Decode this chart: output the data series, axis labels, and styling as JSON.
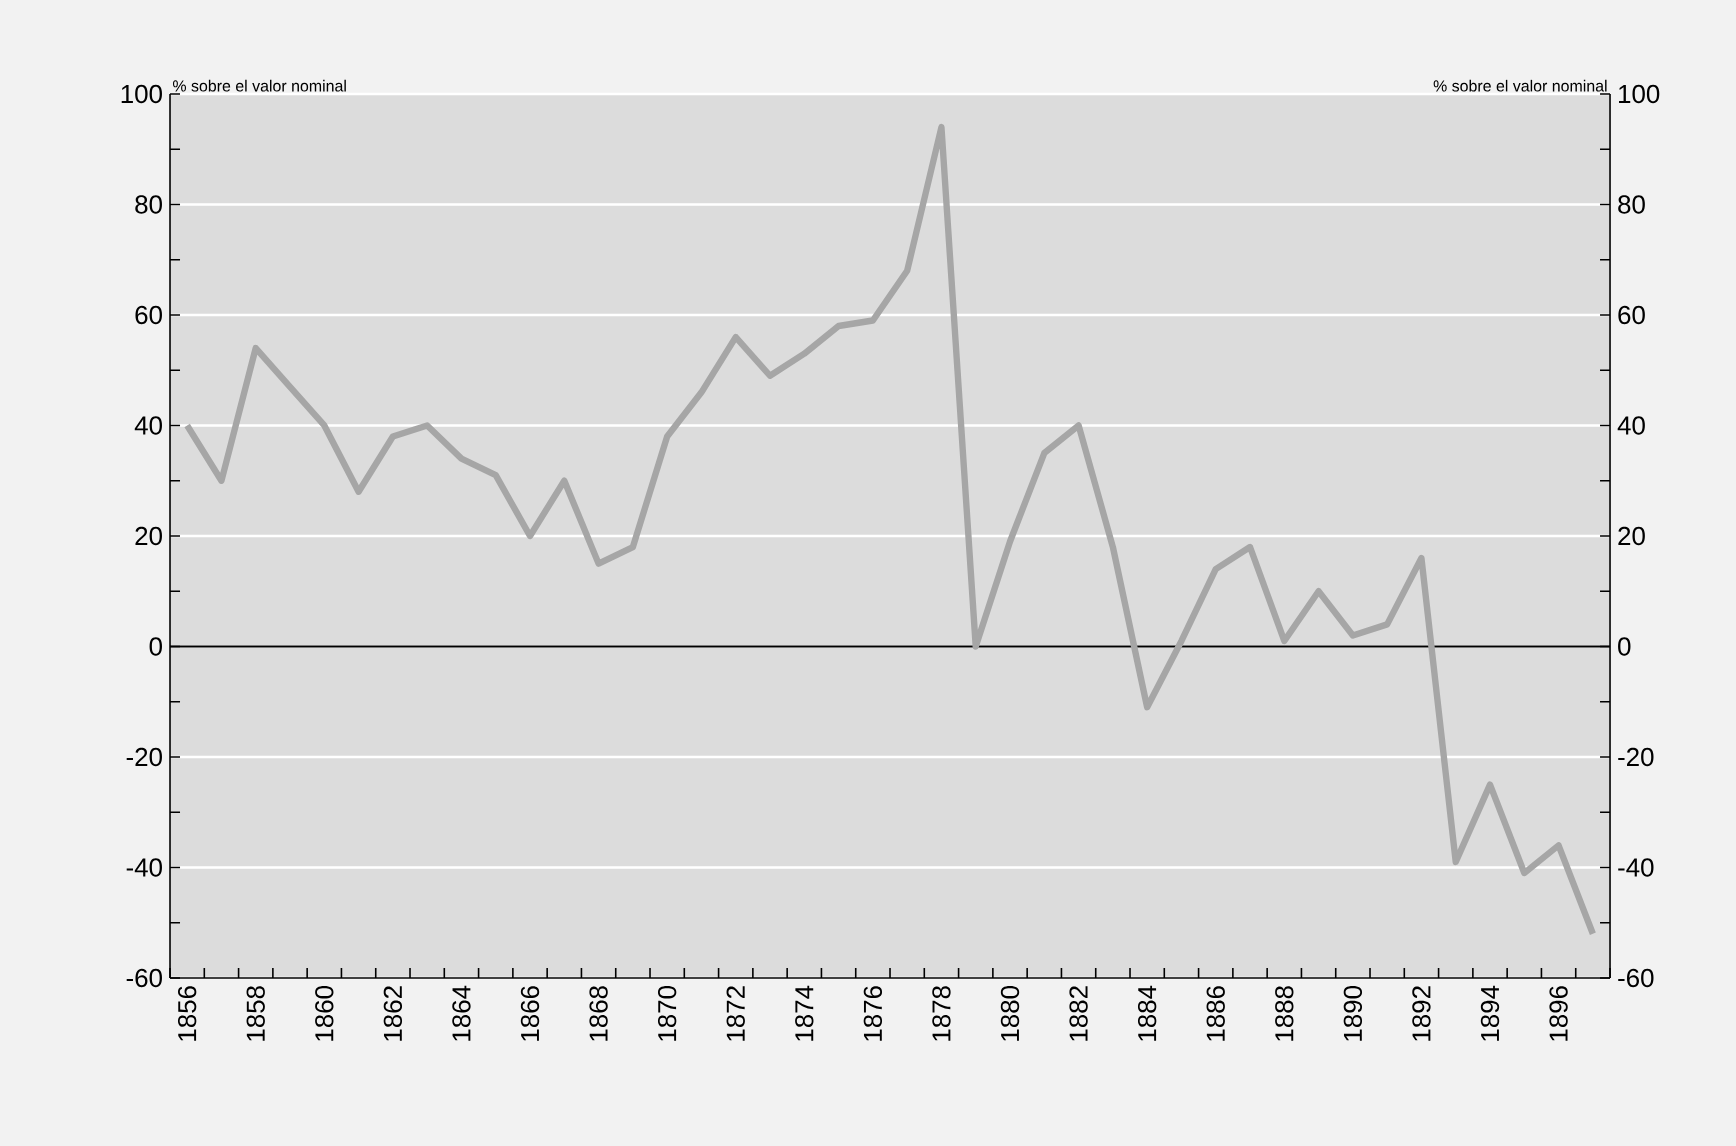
{
  "chart_data": {
    "type": "line",
    "ylabel": "% sobre el valor nominal",
    "y2label": "% sobre el valor nominal",
    "categories": [
      "1856",
      null,
      "1858",
      null,
      "1860",
      null,
      "1862",
      null,
      "1864",
      null,
      "1866",
      null,
      "1868",
      null,
      "1870",
      null,
      "1872",
      null,
      "1874",
      null,
      "1876",
      null,
      "1878",
      null,
      "1880",
      null,
      "1882",
      null,
      "1884",
      null,
      "1886",
      null,
      "1888",
      null,
      "1890",
      null,
      "1892",
      null,
      "1894",
      null,
      "1896",
      null
    ],
    "series": [
      {
        "color": "#a6a6a6",
        "values": [
          40,
          30,
          54,
          47,
          40,
          28,
          38,
          40,
          34,
          31,
          20,
          30,
          15,
          18,
          38,
          46,
          56,
          49,
          53,
          58,
          59,
          68,
          94,
          0,
          19,
          35,
          40,
          18,
          -11,
          1,
          14,
          18,
          1,
          10,
          2,
          4,
          16,
          -39,
          -25,
          -41,
          -36,
          -52
        ]
      }
    ],
    "ylim": [
      -60,
      100
    ],
    "yticks": [
      -60,
      -40,
      -20,
      0,
      20,
      40,
      60,
      80,
      100
    ],
    "y2lim": [
      -60,
      100
    ],
    "y2ticks": [
      -60,
      -40,
      -20,
      0,
      20,
      40,
      60,
      80,
      100
    ],
    "grid": "y",
    "marker": "none",
    "line_style": "solid",
    "ref_lines": [
      {
        "axis": "y",
        "value": 0,
        "color": "#000000"
      }
    ]
  }
}
